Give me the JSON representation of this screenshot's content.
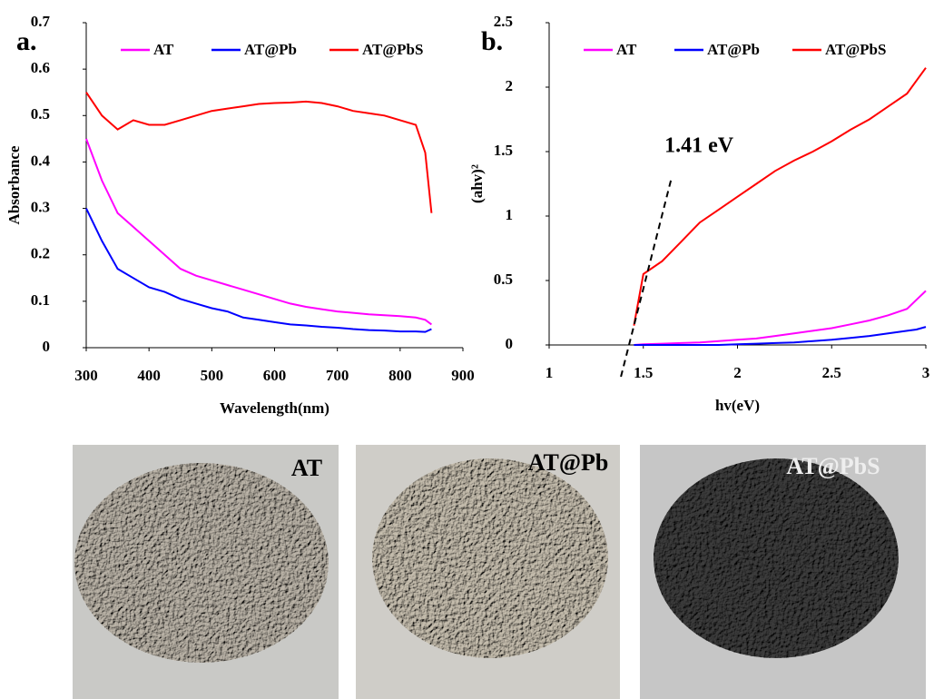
{
  "chart_data": [
    {
      "type": "line",
      "label": "a.",
      "xlabel": "Wavelength(nm)",
      "ylabel": "Absorbance",
      "x": [
        300,
        325,
        350,
        375,
        400,
        425,
        450,
        475,
        500,
        525,
        550,
        575,
        600,
        625,
        650,
        675,
        700,
        725,
        750,
        775,
        800,
        825,
        840,
        850
      ],
      "series": [
        {
          "name": "AT",
          "color": "#ff00ff",
          "values": [
            0.45,
            0.36,
            0.29,
            0.26,
            0.23,
            0.2,
            0.17,
            0.155,
            0.145,
            0.135,
            0.125,
            0.115,
            0.105,
            0.095,
            0.088,
            0.083,
            0.078,
            0.075,
            0.072,
            0.07,
            0.068,
            0.065,
            0.06,
            0.05
          ]
        },
        {
          "name": "AT@Pb",
          "color": "#0000ff",
          "values": [
            0.3,
            0.23,
            0.17,
            0.15,
            0.13,
            0.12,
            0.105,
            0.095,
            0.085,
            0.078,
            0.065,
            0.06,
            0.055,
            0.05,
            0.048,
            0.045,
            0.043,
            0.04,
            0.038,
            0.037,
            0.035,
            0.035,
            0.034,
            0.04
          ]
        },
        {
          "name": "AT@PbS",
          "color": "#ff0000",
          "values": [
            0.55,
            0.5,
            0.47,
            0.49,
            0.48,
            0.48,
            0.49,
            0.5,
            0.51,
            0.515,
            0.52,
            0.525,
            0.527,
            0.528,
            0.53,
            0.527,
            0.52,
            0.51,
            0.505,
            0.5,
            0.49,
            0.48,
            0.42,
            0.29
          ]
        }
      ],
      "xlim": [
        300,
        900
      ],
      "xticks": [
        300,
        400,
        500,
        600,
        700,
        800,
        900
      ],
      "ylim": [
        0,
        0.7
      ],
      "yticks": [
        0,
        0.1,
        0.2,
        0.3,
        0.4,
        0.5,
        0.6,
        0.7
      ],
      "legend": "top"
    },
    {
      "type": "line",
      "label": "b.",
      "xlabel": "hv(eV)",
      "ylabel": "(ahv)²",
      "x": [
        1.45,
        1.5,
        1.6,
        1.7,
        1.8,
        1.9,
        2.0,
        2.1,
        2.2,
        2.3,
        2.4,
        2.5,
        2.6,
        2.7,
        2.8,
        2.9,
        2.95,
        3.0
      ],
      "series": [
        {
          "name": "AT",
          "color": "#ff00ff",
          "values": [
            0,
            0.005,
            0.01,
            0.015,
            0.02,
            0.03,
            0.04,
            0.05,
            0.07,
            0.09,
            0.11,
            0.13,
            0.16,
            0.19,
            0.23,
            0.28,
            0.35,
            0.42
          ]
        },
        {
          "name": "AT@Pb",
          "color": "#0000ff",
          "values": [
            0,
            0,
            0,
            0,
            0,
            0,
            0.005,
            0.01,
            0.015,
            0.02,
            0.03,
            0.04,
            0.055,
            0.07,
            0.09,
            0.11,
            0.12,
            0.14
          ]
        },
        {
          "name": "AT@PbS",
          "color": "#ff0000",
          "values": [
            0.15,
            0.55,
            0.65,
            0.8,
            0.95,
            1.05,
            1.15,
            1.25,
            1.35,
            1.43,
            1.5,
            1.58,
            1.67,
            1.75,
            1.85,
            1.95,
            2.05,
            2.15
          ]
        }
      ],
      "xlim": [
        1,
        3
      ],
      "xticks": [
        1,
        1.5,
        2,
        2.5,
        3
      ],
      "ylim": [
        0,
        2.5
      ],
      "yticks": [
        0,
        0.5,
        1,
        1.5,
        2,
        2.5
      ],
      "annotations": [
        {
          "text": "1.41 eV",
          "x": 1.41
        }
      ],
      "legend": "top"
    }
  ],
  "photos": [
    "AT",
    "AT@Pb",
    "AT@PbS"
  ]
}
